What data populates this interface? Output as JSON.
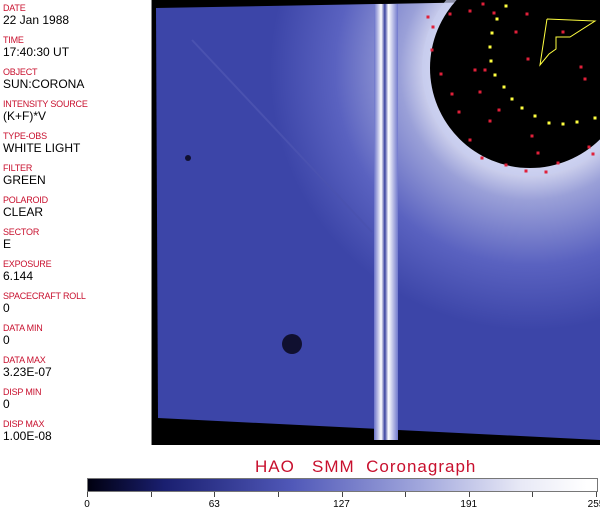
{
  "header_fields": [
    {
      "label": "DATE",
      "value": "22 Jan 1988"
    },
    {
      "label": "TIME",
      "value": "17:40:30 UT"
    },
    {
      "label": "OBJECT",
      "value": "SUN:CORONA"
    },
    {
      "label": "INTENSITY SOURCE",
      "value": "(K+F)*V"
    },
    {
      "label": "TYPE-OBS",
      "value": "WHITE LIGHT"
    },
    {
      "label": "FILTER",
      "value": "GREEN"
    },
    {
      "label": "POLAROID",
      "value": "CLEAR"
    },
    {
      "label": "SECTOR",
      "value": "E"
    },
    {
      "label": "EXPOSURE",
      "value": "6.144"
    },
    {
      "label": "SPACECRAFT ROLL",
      "value": "0"
    },
    {
      "label": "DATA MIN",
      "value": "0"
    },
    {
      "label": "DATA MAX",
      "value": "3.23E-07"
    },
    {
      "label": "DISP MIN",
      "value": "0"
    },
    {
      "label": "DISP MAX",
      "value": "1.00E-08"
    }
  ],
  "title": "HAO   SMM  Coronagraph",
  "colorbar": {
    "ticks": [
      "0",
      "63",
      "127",
      "191",
      "255"
    ],
    "colors": {
      "dark": "#000010",
      "mid": "#5058b8",
      "light": "#ffffff"
    }
  },
  "colors": {
    "label": "#c8102e",
    "marker_red": "#e0203a",
    "marker_yellow": "#ffff40"
  }
}
